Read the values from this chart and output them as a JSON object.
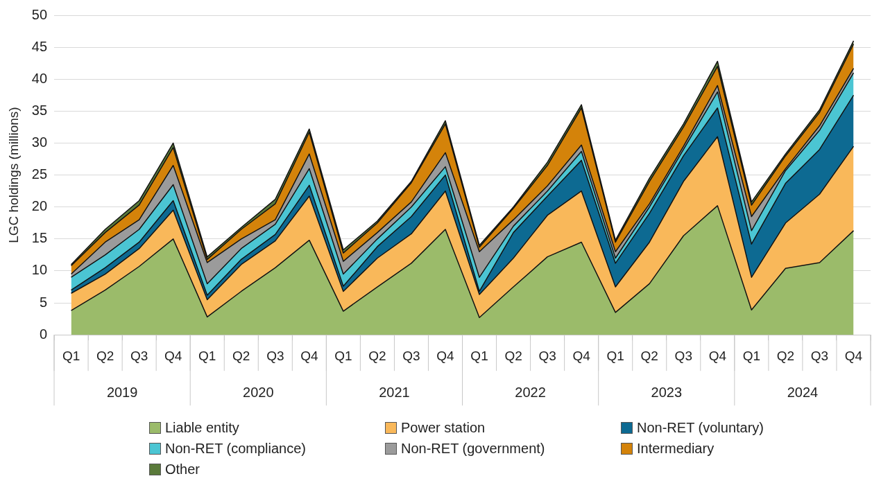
{
  "chart_data": {
    "type": "area",
    "stacked": true,
    "ylabel": "LGC holdings (millions)",
    "categories": [
      "Q1",
      "Q2",
      "Q3",
      "Q4",
      "Q1",
      "Q2",
      "Q3",
      "Q4",
      "Q1",
      "Q2",
      "Q3",
      "Q4",
      "Q1",
      "Q2",
      "Q3",
      "Q4",
      "Q1",
      "Q2",
      "Q3",
      "Q4",
      "Q1",
      "Q2",
      "Q3",
      "Q4"
    ],
    "annotations": [
      "2019",
      "2020",
      "2021",
      "2022",
      "2023",
      "2024"
    ],
    "ylim": [
      0,
      50
    ],
    "yticks": [
      0,
      5,
      10,
      15,
      20,
      25,
      30,
      35,
      40,
      45,
      50
    ],
    "grid": "y",
    "legend": "bottom",
    "series": [
      {
        "name": "Liable entity",
        "color": "#9bbb6a",
        "values": [
          3.8,
          7.0,
          10.7,
          15.0,
          2.8,
          6.8,
          10.5,
          14.8,
          3.7,
          7.5,
          11.2,
          16.5,
          2.7,
          7.5,
          12.2,
          14.5,
          3.5,
          8.0,
          15.5,
          20.2,
          3.9,
          10.4,
          11.3,
          16.3
        ]
      },
      {
        "name": "Power station",
        "color": "#f9b85a",
        "values": [
          2.7,
          2.5,
          2.8,
          4.5,
          2.7,
          4.2,
          4.2,
          6.9,
          3.1,
          4.5,
          4.6,
          6.0,
          3.6,
          4.5,
          6.5,
          8.0,
          4.0,
          6.5,
          8.5,
          10.8,
          5.1,
          7.1,
          10.7,
          13.2
        ]
      },
      {
        "name": "Non-RET (voluntary)",
        "color": "#0d6a92",
        "values": [
          0.5,
          1.0,
          1.0,
          1.5,
          0.7,
          0.8,
          1.0,
          1.7,
          0.8,
          1.8,
          2.7,
          2.5,
          0.5,
          4.0,
          3.0,
          4.8,
          3.7,
          4.5,
          4.0,
          4.5,
          5.2,
          6.2,
          7.0,
          8.0
        ]
      },
      {
        "name": "Non-RET (compliance)",
        "color": "#4bc5d3",
        "values": [
          2.0,
          2.0,
          2.0,
          2.5,
          1.8,
          1.7,
          1.6,
          2.6,
          1.9,
          1.2,
          1.5,
          1.3,
          2.2,
          1.0,
          0.8,
          1.4,
          0.8,
          1.0,
          1.0,
          2.5,
          2.1,
          2.0,
          3.0,
          3.5
        ]
      },
      {
        "name": "Non-RET (government)",
        "color": "#9b9b9b",
        "values": [
          0.5,
          2.0,
          1.5,
          3.0,
          3.3,
          1.5,
          0.7,
          2.3,
          2.0,
          1.0,
          0.8,
          2.2,
          4.0,
          1.0,
          0.8,
          1.0,
          1.0,
          0.5,
          0.5,
          1.0,
          2.2,
          0.3,
          0.7,
          0.7
        ]
      },
      {
        "name": "Intermediary",
        "color": "#d4830a",
        "values": [
          1.3,
          1.5,
          2.3,
          2.8,
          0.5,
          1.5,
          2.5,
          3.4,
          1.3,
          1.5,
          3.0,
          4.5,
          0.7,
          1.8,
          3.2,
          5.8,
          1.5,
          3.5,
          3.0,
          3.0,
          1.8,
          2.0,
          2.1,
          3.8
        ]
      },
      {
        "name": "Other",
        "color": "#5a7a3a",
        "values": [
          0.2,
          0.5,
          0.7,
          0.7,
          0.4,
          0.3,
          0.7,
          0.5,
          0.5,
          0.3,
          0.2,
          0.5,
          0.3,
          0.2,
          0.5,
          0.5,
          0.3,
          0.5,
          0.5,
          0.8,
          0.5,
          0.3,
          0.4,
          0.5
        ]
      }
    ]
  }
}
